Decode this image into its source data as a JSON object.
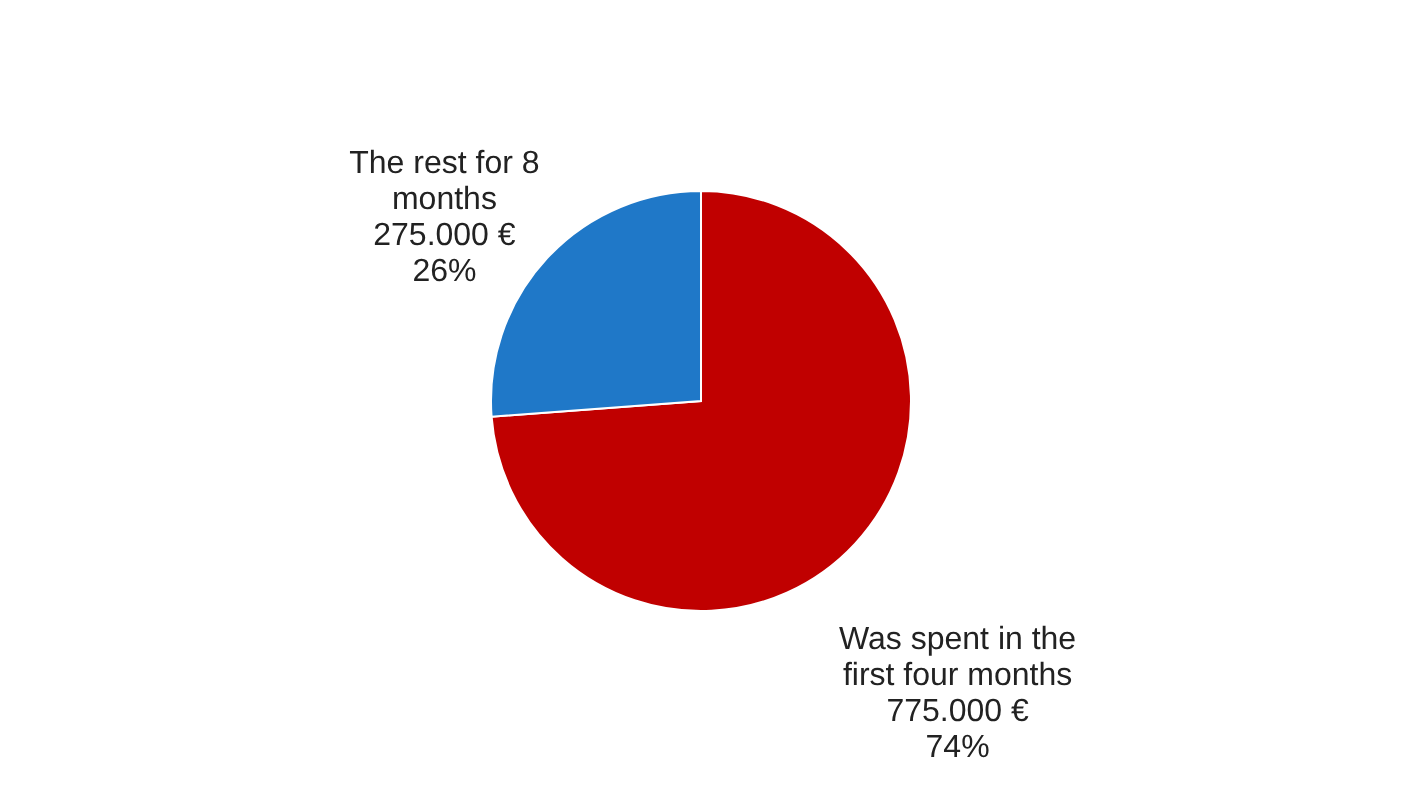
{
  "chart_data": {
    "type": "pie",
    "categories": [
      "Was spent in the first four months",
      "The rest for 8 months"
    ],
    "values": [
      775000,
      275000
    ],
    "colors": [
      "#c00000",
      "#1f78c8"
    ],
    "value_labels": [
      "775.000  €\n74%",
      "275.000  €\n26%"
    ],
    "legend": false
  }
}
